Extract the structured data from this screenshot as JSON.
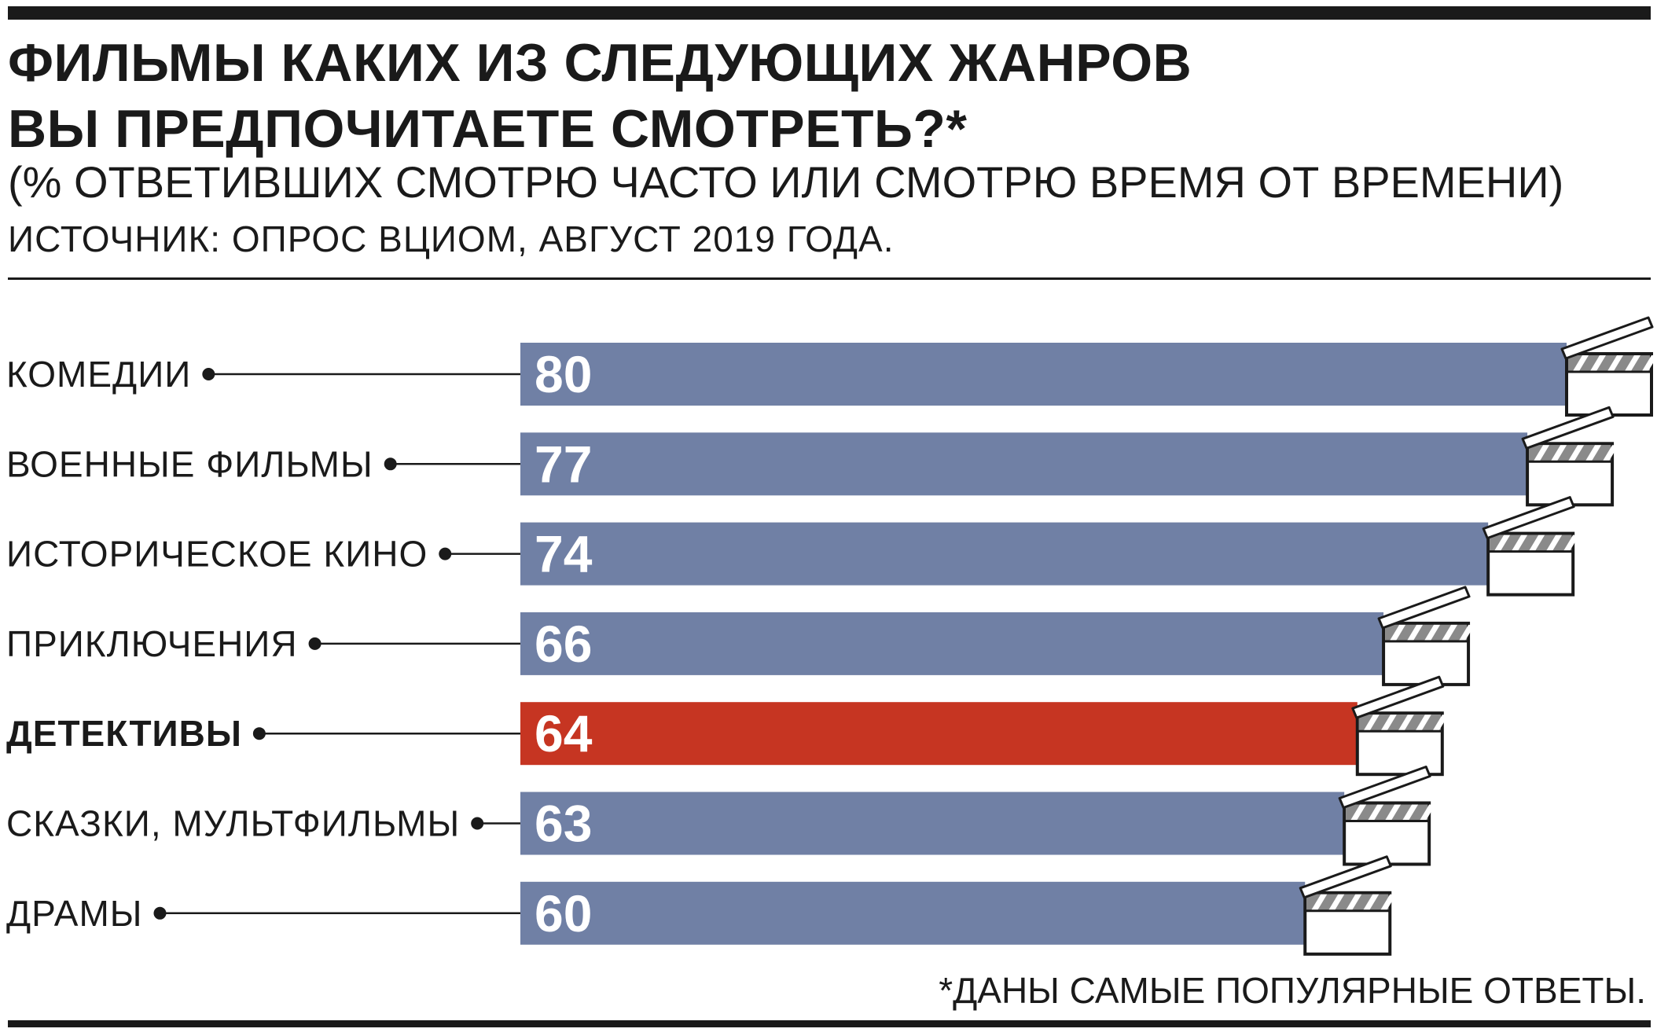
{
  "header": {
    "title_line1": "ФИЛЬМЫ КАКИХ ИЗ СЛЕДУЮЩИХ ЖАНРОВ",
    "title_line2": "ВЫ ПРЕДПОЧИТАЕТЕ СМОТРЕТЬ?*",
    "subtitle": "(% ОТВЕТИВШИХ СМОТРЮ ЧАСТО ИЛИ СМОТРЮ ВРЕМЯ ОТ ВРЕМЕНИ)",
    "source": "ИСТОЧНИК: ОПРОС ВЦИОМ, АВГУСТ 2019 ГОДА."
  },
  "footnote": "*ДАНЫ САМЫЕ ПОПУЛЯРНЫЕ ОТВЕТЫ.",
  "colors": {
    "bar": "#7080a5",
    "highlight": "#c63522",
    "text": "#1a1a1a",
    "value_text": "#ffffff",
    "clapper_stripe": "#8a8a8a"
  },
  "icons": {
    "bar_end": "clapperboard-icon",
    "leader_end": "dot-icon"
  },
  "chart_data": {
    "type": "bar",
    "orientation": "horizontal",
    "unit": "%",
    "categories": [
      "КОМЕДИИ",
      "ВОЕННЫЕ ФИЛЬМЫ",
      "ИСТОРИЧЕСКОЕ КИНО",
      "ПРИКЛЮЧЕНИЯ",
      "ДЕТЕКТИВЫ",
      "СКАЗКИ, МУЛЬТФИЛЬМЫ",
      "ДРАМЫ"
    ],
    "values": [
      80,
      77,
      74,
      66,
      64,
      63,
      60
    ],
    "highlight": "ДЕТЕКТИВЫ",
    "xlim": [
      0,
      80
    ],
    "grid": false,
    "legend": "none"
  }
}
